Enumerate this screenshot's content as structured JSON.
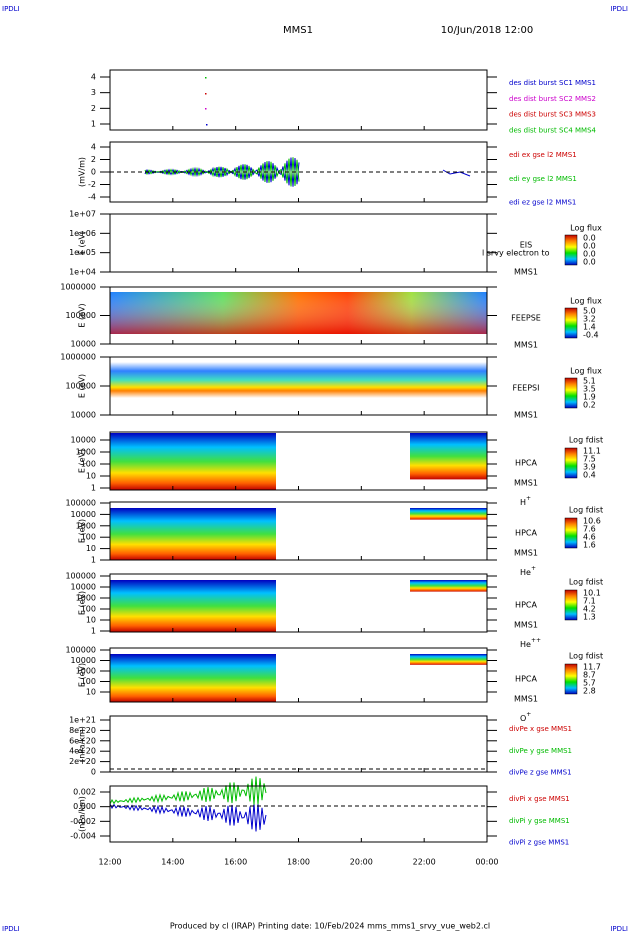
{
  "header": {
    "left_mark": "IPDLI",
    "right_mark": "IPDLI",
    "title": "MMS1",
    "date": "10/Jun/2018 12:00"
  },
  "xticks": [
    "12:00",
    "14:00",
    "16:00",
    "18:00",
    "20:00",
    "22:00",
    "00:00"
  ],
  "panels": [
    {
      "yticks": [
        "4",
        "3",
        "2",
        "1"
      ],
      "legend": [
        {
          "text": "des dist burst SC1 MMS1",
          "color": "#0000cc"
        },
        {
          "text": "des dist burst SC2 MMS2",
          "color": "#cc00cc"
        },
        {
          "text": "des dist burst SC3 MMS3",
          "color": "#cc0000"
        },
        {
          "text": "des dist burst SC4 MMS4",
          "color": "#00bb00"
        }
      ]
    },
    {
      "ylabel": "(mV/m)",
      "yticks": [
        "4",
        "2",
        "0",
        "-2",
        "-4"
      ],
      "legend": [
        {
          "text": "edi ex gse l2 MMS1",
          "color": "#cc0000"
        },
        {
          "text": "edi ey gse l2 MMS1",
          "color": "#00bb00"
        },
        {
          "text": "edi ez gse l2 MMS1",
          "color": "#0000cc"
        }
      ]
    },
    {
      "ylabel": "E (eV)",
      "yticks": [
        "1e+07",
        "1e+06",
        "1e+05",
        "1e+04"
      ],
      "instrument": "EIS",
      "spacecraft": "MMS1",
      "overlap": "l srvy electron to",
      "cbar_title": "Log flux",
      "cbar_ticks": [
        "0.0",
        "0.0",
        "0.0",
        "0.0"
      ]
    },
    {
      "ylabel": "E (eV)",
      "yticks": [
        "1000000",
        "100000",
        "10000"
      ],
      "instrument": "FEEPSE",
      "spacecraft": "MMS1",
      "cbar_title": "Log flux",
      "cbar_ticks": [
        "5.0",
        "3.2",
        "1.4",
        "-0.4"
      ]
    },
    {
      "ylabel": "E (eV)",
      "yticks": [
        "1000000",
        "100000",
        "10000"
      ],
      "instrument": "FEEPSI",
      "spacecraft": "MMS1",
      "cbar_title": "Log flux",
      "cbar_ticks": [
        "5.1",
        "3.5",
        "1.9",
        "0.2"
      ]
    },
    {
      "ylabel": "E (eV)",
      "yticks": [
        "10000",
        "1000",
        "100",
        "10",
        "1"
      ],
      "instrument": "HPCA",
      "spacecraft": "MMS1",
      "species": "H",
      "charge": "+",
      "cbar_title": "Log fdist",
      "cbar_ticks": [
        "11.1",
        "7.5",
        "3.9",
        "0.4"
      ]
    },
    {
      "ylabel": "E (eV)",
      "yticks": [
        "100000",
        "10000",
        "1000",
        "100",
        "10",
        "1"
      ],
      "instrument": "HPCA",
      "spacecraft": "MMS1",
      "species": "He",
      "charge": "+",
      "cbar_title": "Log fdist",
      "cbar_ticks": [
        "10.6",
        "7.6",
        "4.6",
        "1.6"
      ]
    },
    {
      "ylabel": "E (eV)",
      "yticks": [
        "100000",
        "10000",
        "1000",
        "100",
        "10",
        "1"
      ],
      "instrument": "HPCA",
      "spacecraft": "MMS1",
      "species": "He",
      "charge": "++",
      "cbar_title": "Log fdist",
      "cbar_ticks": [
        "10.1",
        "7.1",
        "4.2",
        "1.3"
      ]
    },
    {
      "ylabel": "E (eV)",
      "yticks": [
        "100000",
        "10000",
        "1000",
        "100",
        "10"
      ],
      "instrument": "HPCA",
      "spacecraft": "MMS1",
      "species": "O",
      "charge": "+",
      "cbar_title": "Log fdist",
      "cbar_ticks": [
        "11.7",
        "8.7",
        "5.7",
        "2.8"
      ]
    },
    {
      "ylabel": "(nPa/km)",
      "yticks": [
        "1e+21",
        "8e+20",
        "6e+20",
        "4e+20",
        "2e+20",
        "0"
      ],
      "legend": [
        {
          "text": "divPe x gse MMS1",
          "color": "#cc0000"
        },
        {
          "text": "divPe y gse MMS1",
          "color": "#00bb00"
        },
        {
          "text": "divPe z gse MMS1",
          "color": "#0000cc"
        }
      ]
    },
    {
      "ylabel": "(nPa/km)",
      "yticks": [
        "0.002",
        "0.000",
        "-0.002",
        "-0.004"
      ],
      "legend": [
        {
          "text": "divPi x gse MMS1",
          "color": "#cc0000"
        },
        {
          "text": "divPi y gse MMS1",
          "color": "#00bb00"
        },
        {
          "text": "divPi z gse MMS1",
          "color": "#0000cc"
        }
      ]
    }
  ],
  "footer": {
    "credit": "Produced by cl (IRAP)   Printing date: 10/Feb/2024   mms_mms1_srvy_vue_web2.cl",
    "left_mark": "IPDLI",
    "right_mark": "IPDLI"
  }
}
